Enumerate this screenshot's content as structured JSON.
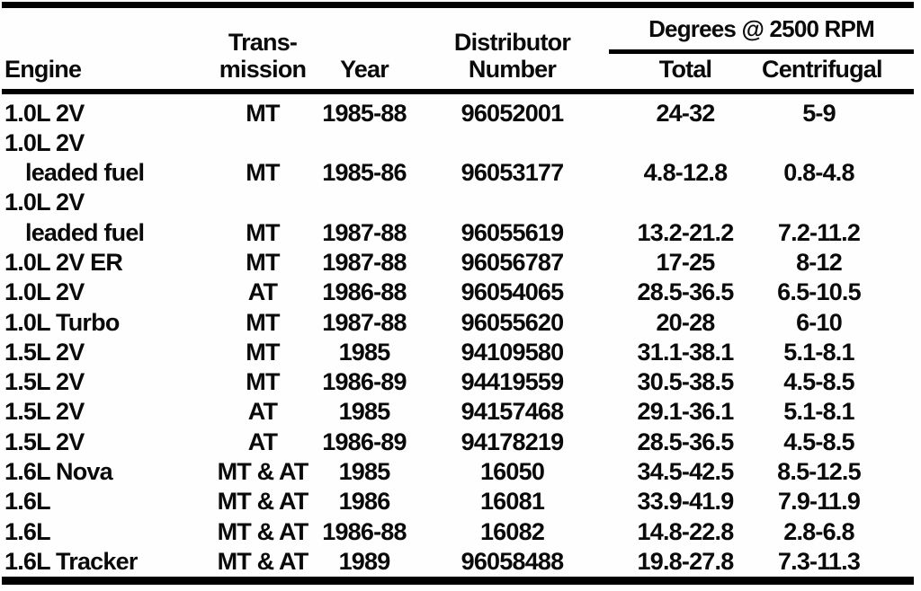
{
  "colors": {
    "text": "#0a0a0a",
    "background": "#fefefe",
    "rule": "#000000"
  },
  "table": {
    "columns": {
      "engine": "Engine",
      "transmission": [
        "Trans-",
        "mission"
      ],
      "year": "Year",
      "distributor": [
        "Distributor",
        "Number"
      ],
      "degrees_group": "Degrees @ 2500 RPM",
      "total": "Total",
      "centrifugal": "Centrifugal"
    },
    "rows": [
      {
        "engine": [
          "1.0L 2V"
        ],
        "transmission": "MT",
        "year": "1985-88",
        "distributor": "96052001",
        "total": "24-32",
        "centrifugal": "5-9"
      },
      {
        "engine": [
          "1.0L 2V",
          "leaded fuel"
        ],
        "transmission": "MT",
        "year": "1985-86",
        "distributor": "96053177",
        "total": "4.8-12.8",
        "centrifugal": "0.8-4.8"
      },
      {
        "engine": [
          "1.0L 2V",
          "leaded fuel"
        ],
        "transmission": "MT",
        "year": "1987-88",
        "distributor": "96055619",
        "total": "13.2-21.2",
        "centrifugal": "7.2-11.2"
      },
      {
        "engine": [
          "1.0L 2V ER"
        ],
        "transmission": "MT",
        "year": "1987-88",
        "distributor": "96056787",
        "total": "17-25",
        "centrifugal": "8-12"
      },
      {
        "engine": [
          "1.0L 2V"
        ],
        "transmission": "AT",
        "year": "1986-88",
        "distributor": "96054065",
        "total": "28.5-36.5",
        "centrifugal": "6.5-10.5"
      },
      {
        "engine": [
          "1.0L Turbo"
        ],
        "transmission": "MT",
        "year": "1987-88",
        "distributor": "96055620",
        "total": "20-28",
        "centrifugal": "6-10"
      },
      {
        "engine": [
          "1.5L 2V"
        ],
        "transmission": "MT",
        "year": "1985",
        "distributor": "94109580",
        "total": "31.1-38.1",
        "centrifugal": "5.1-8.1"
      },
      {
        "engine": [
          "1.5L 2V"
        ],
        "transmission": "MT",
        "year": "1986-89",
        "distributor": "94419559",
        "total": "30.5-38.5",
        "centrifugal": "4.5-8.5"
      },
      {
        "engine": [
          "1.5L 2V"
        ],
        "transmission": "AT",
        "year": "1985",
        "distributor": "94157468",
        "total": "29.1-36.1",
        "centrifugal": "5.1-8.1"
      },
      {
        "engine": [
          "1.5L 2V"
        ],
        "transmission": "AT",
        "year": "1986-89",
        "distributor": "94178219",
        "total": "28.5-36.5",
        "centrifugal": "4.5-8.5"
      },
      {
        "engine": [
          "1.6L Nova"
        ],
        "transmission": "MT & AT",
        "year": "1985",
        "distributor": "16050",
        "total": "34.5-42.5",
        "centrifugal": "8.5-12.5"
      },
      {
        "engine": [
          "1.6L"
        ],
        "transmission": "MT & AT",
        "year": "1986",
        "distributor": "16081",
        "total": "33.9-41.9",
        "centrifugal": "7.9-11.9"
      },
      {
        "engine": [
          "1.6L"
        ],
        "transmission": "MT & AT",
        "year": "1986-88",
        "distributor": "16082",
        "total": "14.8-22.8",
        "centrifugal": "2.8-6.8"
      },
      {
        "engine": [
          "1.6L Tracker"
        ],
        "transmission": "MT & AT",
        "year": "1989",
        "distributor": "96058488",
        "total": "19.8-27.8",
        "centrifugal": "7.3-11.3"
      }
    ]
  }
}
